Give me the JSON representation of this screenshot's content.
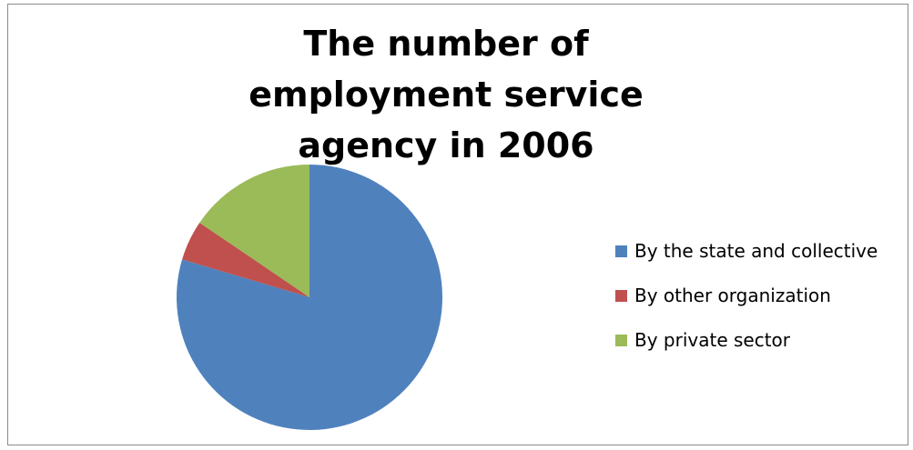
{
  "chart_data": {
    "type": "pie",
    "title": "The number of employment service agency in 2006",
    "categories": [
      "By the state and collective",
      "By other organization",
      "By private sector"
    ],
    "values": [
      79.6,
      4.9,
      15.5
    ],
    "unit": "%",
    "colors": [
      "#4f81bd",
      "#c0504d",
      "#9bbb59"
    ],
    "start_angle_deg": 0,
    "direction": "clockwise",
    "legend_position": "right"
  }
}
